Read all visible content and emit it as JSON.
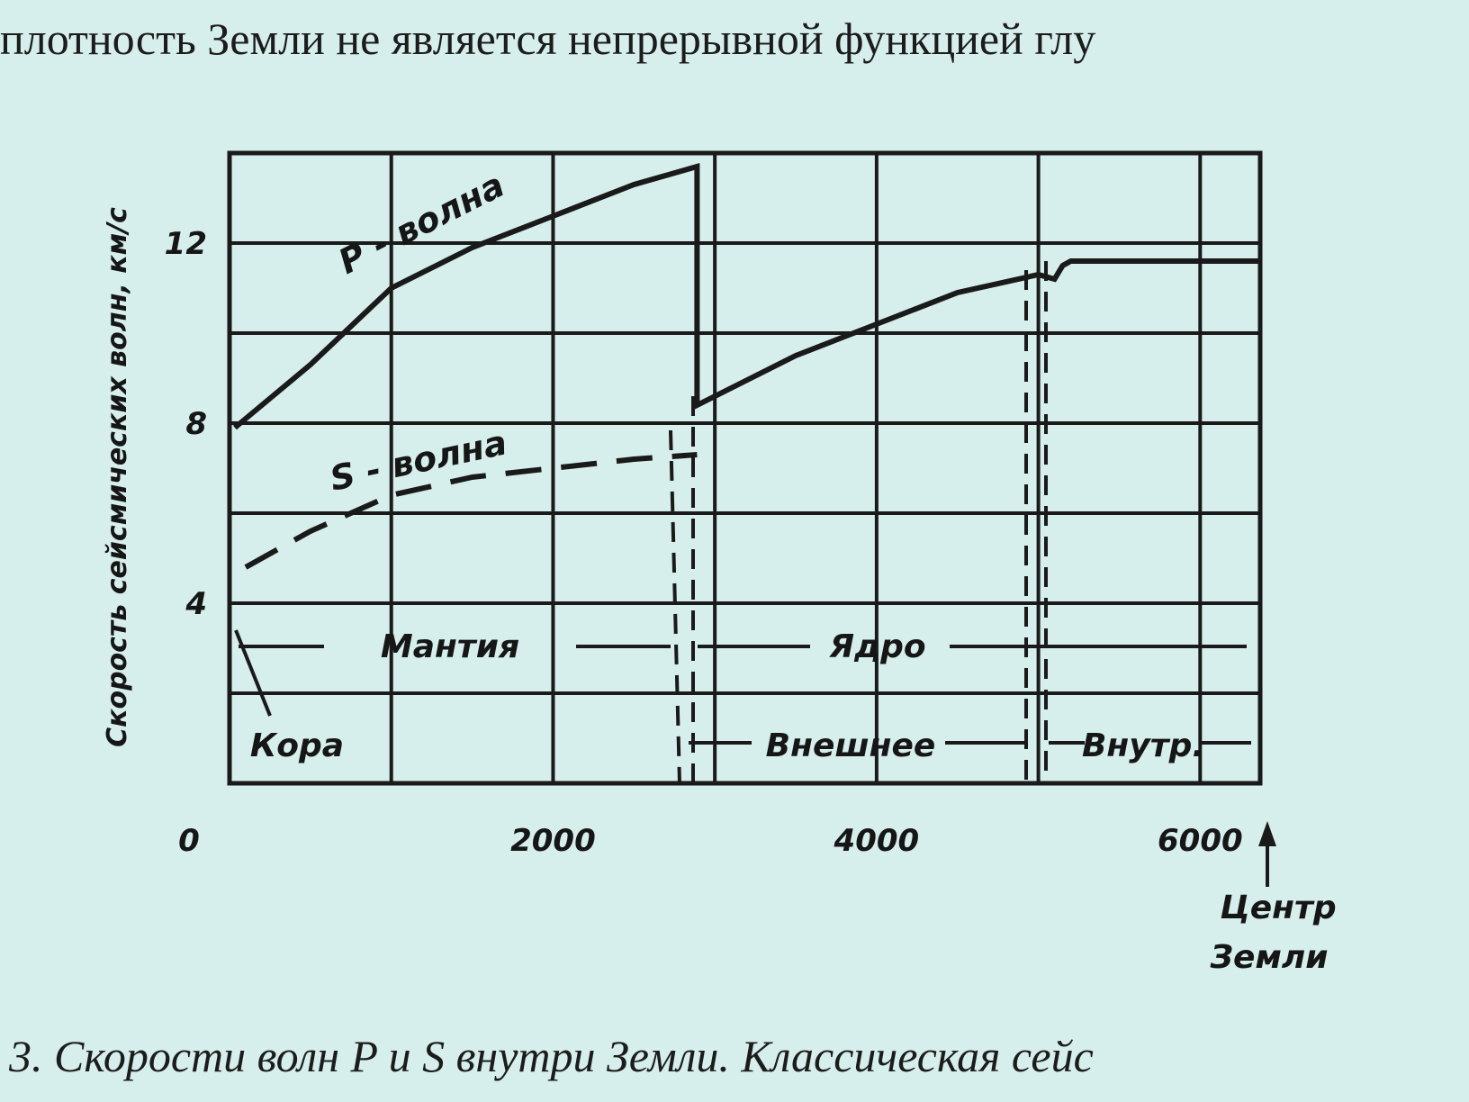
{
  "page_text": {
    "top": "плотность Земли не является непрерывной функцией глу",
    "caption": "3. Скорости волн P и S внутри Земли. Классическая сейс"
  },
  "chart_data": {
    "type": "line",
    "ylabel": "Скорость сейсмических волн, км/с",
    "xlim": [
      0,
      6371
    ],
    "ylim": [
      0,
      14
    ],
    "xticks": [
      0,
      2000,
      4000,
      6000
    ],
    "yticks": [
      4,
      8,
      12
    ],
    "grid": true,
    "series": [
      {
        "name": "P - волна",
        "color": "#1a1a1a",
        "dashed": false,
        "x": [
          33,
          500,
          1000,
          1500,
          2000,
          2500,
          2890,
          2890,
          3500,
          4000,
          4500,
          5000,
          5100,
          5150,
          5200,
          5500,
          6000,
          6371
        ],
        "values": [
          7.9,
          9.3,
          11,
          11.9,
          12.6,
          13.3,
          13.7,
          8.4,
          9.5,
          10.2,
          10.9,
          11.3,
          11.2,
          11.5,
          11.6,
          11.6,
          11.6,
          11.6
        ]
      },
      {
        "name": "S - волна",
        "color": "#1a1a1a",
        "dashed": true,
        "x": [
          100,
          500,
          1000,
          1500,
          2000,
          2500,
          2890
        ],
        "values": [
          4.8,
          5.6,
          6.4,
          6.8,
          7.0,
          7.2,
          7.3
        ]
      }
    ],
    "annotations": {
      "mantle": "Мантия",
      "core": "Ядро",
      "crust": "Кора",
      "outer": "Внешнее",
      "inner": "Внутр.",
      "center": [
        "Центр",
        "Земли"
      ]
    }
  }
}
